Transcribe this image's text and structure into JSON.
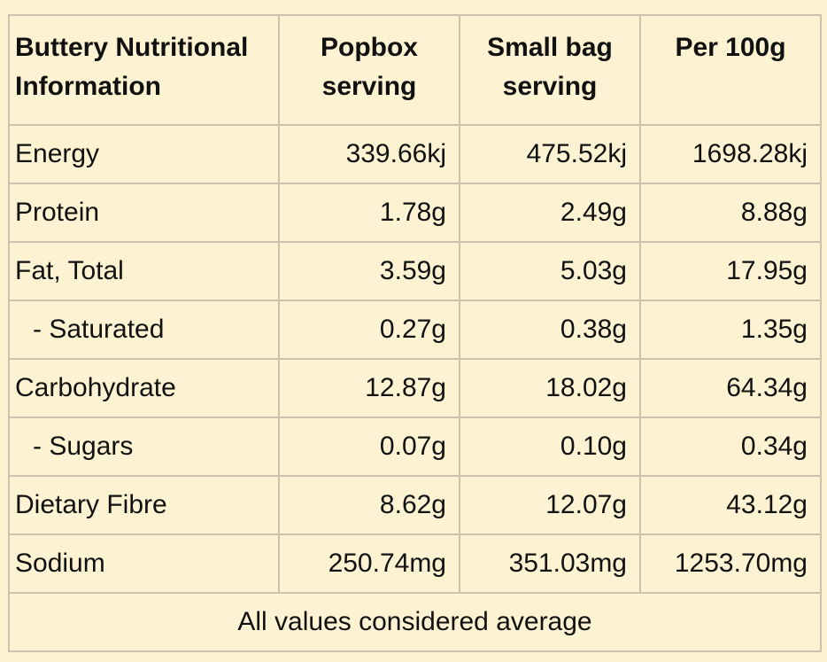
{
  "header": {
    "col1_line1": "Buttery Nutritional",
    "col1_line2": "Information",
    "col2_line1": "Popbox",
    "col2_line2": "serving",
    "col3_line1": "Small bag",
    "col3_line2": "serving",
    "col4_line1": "Per 100g"
  },
  "rows": [
    {
      "label": "Energy",
      "popbox": "339.66kj",
      "small_bag": "475.52kj",
      "per100": "1698.28kj"
    },
    {
      "label": "Protein",
      "popbox": "1.78g",
      "small_bag": "2.49g",
      "per100": "8.88g"
    },
    {
      "label": "Fat, Total",
      "popbox": "3.59g",
      "small_bag": "5.03g",
      "per100": "17.95g"
    },
    {
      "label": "- Saturated",
      "popbox": "0.27g",
      "small_bag": "0.38g",
      "per100": "1.35g"
    },
    {
      "label": "Carbohydrate",
      "popbox": "12.87g",
      "small_bag": "18.02g",
      "per100": "64.34g"
    },
    {
      "label": "- Sugars",
      "popbox": "0.07g",
      "small_bag": "0.10g",
      "per100": "0.34g"
    },
    {
      "label": "Dietary Fibre",
      "popbox": "8.62g",
      "small_bag": "12.07g",
      "per100": "43.12g"
    },
    {
      "label": "Sodium",
      "popbox": "250.74mg",
      "small_bag": "351.03mg",
      "per100": "1253.70mg"
    }
  ],
  "footer": "All values considered average",
  "colors": {
    "background": "#fdf3d3",
    "border": "#c9c3b0",
    "text": "#111111"
  }
}
